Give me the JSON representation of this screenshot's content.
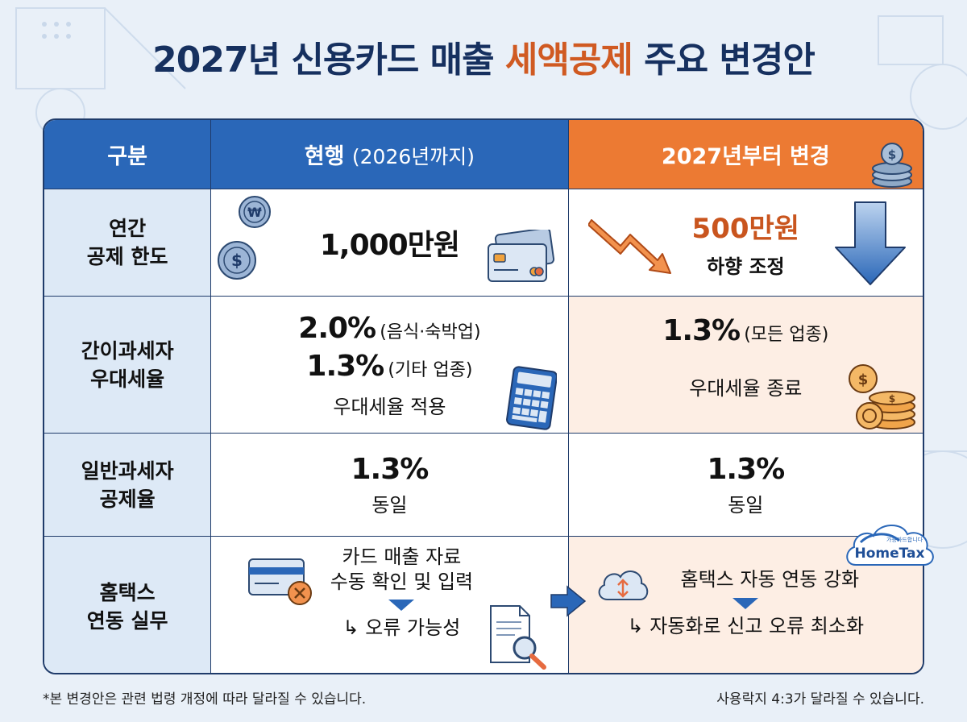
{
  "title": {
    "part1": "2027년 신용카드 매출 ",
    "accent": "세액공제",
    "part2": " 주요 변경안"
  },
  "header": {
    "col1": "구분",
    "col2_main": "현행",
    "col2_sub": "(2026년까지)",
    "col3": "2027년부터 변경"
  },
  "rows": [
    {
      "label_line1": "연간",
      "label_line2": "공제 한도",
      "current": "1,000만원",
      "changed_value": "500만원",
      "changed_note": "하향 조정"
    },
    {
      "label_line1": "간이과세자",
      "label_line2": "우대세율",
      "current_line1_value": "2.0%",
      "current_line1_note": "(음식·숙박업)",
      "current_line2_value": "1.3%",
      "current_line2_note": "(기타 업종)",
      "current_line3": "우대세율 적용",
      "changed_value": "1.3%",
      "changed_value_note": "(모든 업종)",
      "changed_note": "우대세율 종료"
    },
    {
      "label_line1": "일반과세자",
      "label_line2": "공제율",
      "current_value": "1.3%",
      "current_note": "동일",
      "changed_value": "1.3%",
      "changed_note": "동일"
    },
    {
      "label_line1": "홈택스",
      "label_line2": "연동 실무",
      "current_line1": "카드 매출 자료",
      "current_line2": "수동 확인 및 입력",
      "current_result": "↳ 오류 가능성",
      "changed_line1": "홈택스 자동 연동 강화",
      "changed_result": "↳ 자동화로 신고 오류 최소화"
    }
  ],
  "hometax_logo": {
    "small": "가능카드합니다",
    "brand": "HomeTax"
  },
  "icons": {
    "won_coin": "₩",
    "dollar_coin": "$"
  },
  "footnote_left": "*본 변경안은 관련 법령 개정에 따라 달라질 수 있습니다.",
  "footnote_right": "사용락지 4:3가 달라질 수 있습니다.",
  "colors": {
    "navy": "#16305f",
    "blue": "#2a67b8",
    "orange": "#ec7a33",
    "accent_text": "#d05a22"
  }
}
